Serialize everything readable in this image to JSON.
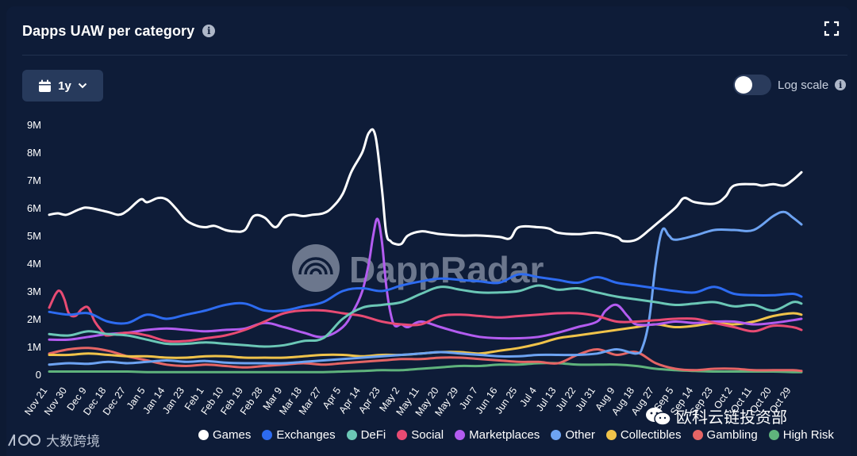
{
  "header": {
    "title": "Dapps UAW per category"
  },
  "controls": {
    "range_label": "1y",
    "log_label": "Log scale"
  },
  "watermark": {
    "brand": "DappRadar",
    "cn_text": "欧科云链投资部",
    "bottom_text": "大数跨境"
  },
  "colors": {
    "Games": "#ffffff",
    "Exchanges": "#2d6bf0",
    "DeFi": "#6bc7b6",
    "Social": "#e84b73",
    "Marketplaces": "#b35cf0",
    "Other": "#6da3f2",
    "Collectibles": "#f0c34a",
    "Gambling": "#e56565",
    "High Risk": "#5fb37c"
  },
  "chart_data": {
    "type": "line",
    "title": "Dapps UAW per category",
    "ylim": [
      0,
      9000000
    ],
    "y_ticks": [
      0,
      1000000,
      2000000,
      3000000,
      4000000,
      5000000,
      6000000,
      7000000,
      8000000,
      9000000
    ],
    "y_tick_labels": [
      "0",
      "1M",
      "2M",
      "3M",
      "4M",
      "5M",
      "6M",
      "7M",
      "8M",
      "9M"
    ],
    "categories": [
      "Nov 21",
      "Nov 30",
      "Dec 9",
      "Dec 18",
      "Dec 27",
      "Jan 5",
      "Jan 14",
      "Jan 23",
      "Feb 1",
      "Feb 10",
      "Feb 19",
      "Feb 28",
      "Mar 9",
      "Mar 18",
      "Mar 27",
      "Apr 5",
      "Apr 14",
      "Apr 23",
      "May 2",
      "May 11",
      "May 20",
      "May 29",
      "Jun 7",
      "Jun 16",
      "Jun 25",
      "Jul 4",
      "Jul 13",
      "Jul 22",
      "Jul 31",
      "Aug 9",
      "Aug 18",
      "Aug 27",
      "Sep 5",
      "Sep 14",
      "Sep 23",
      "Oct 2",
      "Oct 11",
      "Oct 20",
      "Oct 29"
    ],
    "x": [
      0,
      9,
      18,
      27,
      36,
      45,
      54,
      63,
      72,
      81,
      90,
      99,
      108,
      117,
      126,
      135,
      144,
      153,
      162,
      171,
      180,
      189,
      198,
      207,
      216,
      225,
      234,
      243,
      252,
      261,
      270,
      279,
      288,
      297,
      306,
      315,
      324,
      333,
      342
    ],
    "series": [
      {
        "name": "Games",
        "x": [
          0,
          4,
          8,
          14,
          18,
          27,
          32,
          36,
          42,
          45,
          50,
          54,
          58,
          63,
          68,
          72,
          76,
          81,
          85,
          90,
          94,
          99,
          104,
          108,
          112,
          117,
          121,
          126,
          130,
          135,
          139,
          144,
          147,
          150,
          153,
          155,
          157,
          159,
          162,
          165,
          171,
          176,
          180,
          189,
          198,
          207,
          212,
          216,
          225,
          230,
          234,
          243,
          252,
          261,
          264,
          270,
          276,
          279,
          288,
          292,
          297,
          306,
          311,
          315,
          324,
          328,
          333,
          338,
          342,
          346
        ],
        "values": [
          5750000,
          5800000,
          5750000,
          5950000,
          6000000,
          5850000,
          5750000,
          5900000,
          6300000,
          6200000,
          6350000,
          6300000,
          6000000,
          5550000,
          5350000,
          5300000,
          5350000,
          5200000,
          5150000,
          5200000,
          5700000,
          5650000,
          5300000,
          5650000,
          5750000,
          5700000,
          5750000,
          5800000,
          6000000,
          6500000,
          7300000,
          8000000,
          8700000,
          8600000,
          6700000,
          5100000,
          4800000,
          4700000,
          4700000,
          5000000,
          5150000,
          5100000,
          5050000,
          5000000,
          5000000,
          4950000,
          4900000,
          5300000,
          5300000,
          5250000,
          5100000,
          5050000,
          5100000,
          4950000,
          4800000,
          4850000,
          5200000,
          5400000,
          6000000,
          6350000,
          6200000,
          6150000,
          6400000,
          6800000,
          6850000,
          6800000,
          6850000,
          6800000,
          7000000,
          7280000
        ]
      },
      {
        "name": "Exchanges",
        "x": [
          0,
          9,
          18,
          27,
          36,
          45,
          54,
          63,
          72,
          81,
          90,
          99,
          108,
          117,
          126,
          135,
          144,
          153,
          162,
          171,
          180,
          189,
          198,
          207,
          216,
          225,
          234,
          243,
          252,
          261,
          270,
          279,
          288,
          297,
          306,
          315,
          324,
          333,
          342,
          346
        ],
        "values": [
          2250000,
          2150000,
          2200000,
          1900000,
          1850000,
          2150000,
          2000000,
          2150000,
          2300000,
          2500000,
          2550000,
          2300000,
          2300000,
          2450000,
          2600000,
          3000000,
          3100000,
          3000000,
          3200000,
          3350000,
          3450000,
          3400000,
          3350000,
          3300000,
          3600000,
          3500000,
          3400000,
          3300000,
          3500000,
          3300000,
          3200000,
          3100000,
          3000000,
          2950000,
          3150000,
          2900000,
          2850000,
          2850000,
          2900000,
          2800000
        ]
      },
      {
        "name": "DeFi",
        "x": [
          0,
          9,
          18,
          27,
          36,
          45,
          54,
          63,
          72,
          81,
          90,
          99,
          108,
          117,
          126,
          135,
          144,
          153,
          162,
          171,
          180,
          189,
          198,
          207,
          216,
          225,
          234,
          243,
          252,
          261,
          270,
          279,
          288,
          297,
          306,
          315,
          324,
          333,
          342,
          346
        ],
        "values": [
          1450000,
          1400000,
          1550000,
          1450000,
          1400000,
          1250000,
          1100000,
          1100000,
          1150000,
          1100000,
          1050000,
          1000000,
          1050000,
          1200000,
          1300000,
          2000000,
          2400000,
          2500000,
          2600000,
          2900000,
          3150000,
          3050000,
          2950000,
          2950000,
          3000000,
          3200000,
          3050000,
          3100000,
          2950000,
          2800000,
          2700000,
          2600000,
          2500000,
          2550000,
          2600000,
          2450000,
          2500000,
          2300000,
          2600000,
          2550000
        ]
      },
      {
        "name": "Social",
        "x": [
          0,
          3,
          5,
          7,
          9,
          12,
          15,
          18,
          21,
          25,
          27,
          36,
          45,
          54,
          63,
          72,
          81,
          90,
          99,
          108,
          117,
          126,
          135,
          144,
          153,
          162,
          171,
          180,
          189,
          198,
          207,
          216,
          225,
          234,
          243,
          252,
          261,
          270,
          279,
          288,
          297,
          306,
          315,
          324,
          333,
          342,
          346
        ],
        "values": [
          2400000,
          2900000,
          3000000,
          2700000,
          2200000,
          2100000,
          2350000,
          2400000,
          1900000,
          1500000,
          1400000,
          1500000,
          1400000,
          1200000,
          1200000,
          1300000,
          1400000,
          1600000,
          1900000,
          2200000,
          2300000,
          2300000,
          2200000,
          2100000,
          1900000,
          1800000,
          1800000,
          2100000,
          2150000,
          2100000,
          2050000,
          2100000,
          2150000,
          2200000,
          2200000,
          2100000,
          1900000,
          1900000,
          1950000,
          2000000,
          2000000,
          1850000,
          1700000,
          1550000,
          1750000,
          1700000,
          1600000
        ]
      },
      {
        "name": "Marketplaces",
        "x": [
          0,
          9,
          18,
          27,
          36,
          45,
          54,
          63,
          72,
          81,
          90,
          99,
          108,
          117,
          126,
          135,
          140,
          144,
          147,
          149,
          151,
          153,
          155,
          157,
          159,
          162,
          165,
          171,
          180,
          189,
          198,
          207,
          216,
          225,
          234,
          243,
          252,
          256,
          261,
          266,
          270,
          279,
          288,
          297,
          306,
          315,
          324,
          333,
          342,
          346
        ],
        "values": [
          1250000,
          1250000,
          1350000,
          1450000,
          1500000,
          1600000,
          1650000,
          1600000,
          1550000,
          1600000,
          1650000,
          1850000,
          1700000,
          1500000,
          1350000,
          1700000,
          2300000,
          3000000,
          4000000,
          5000000,
          5600000,
          4800000,
          3200000,
          2200000,
          1750000,
          1800000,
          1700000,
          1900000,
          1700000,
          1500000,
          1350000,
          1300000,
          1300000,
          1350000,
          1500000,
          1700000,
          1900000,
          2300000,
          2500000,
          2100000,
          1800000,
          1800000,
          1900000,
          1850000,
          1900000,
          1900000,
          1800000,
          1850000,
          1950000,
          2000000
        ]
      },
      {
        "name": "Other",
        "x": [
          0,
          9,
          18,
          27,
          36,
          45,
          54,
          63,
          72,
          81,
          90,
          99,
          108,
          117,
          126,
          135,
          144,
          153,
          162,
          171,
          180,
          189,
          198,
          207,
          216,
          225,
          234,
          243,
          252,
          261,
          270,
          273,
          276,
          279,
          282,
          285,
          288,
          297,
          306,
          315,
          324,
          333,
          338,
          342,
          346
        ],
        "values": [
          350000,
          400000,
          380000,
          450000,
          400000,
          450000,
          500000,
          450000,
          480000,
          420000,
          400000,
          400000,
          400000,
          450000,
          500000,
          550000,
          600000,
          650000,
          700000,
          750000,
          800000,
          750000,
          700000,
          650000,
          650000,
          700000,
          700000,
          700000,
          750000,
          900000,
          750000,
          1000000,
          2000000,
          4000000,
          5200000,
          5000000,
          4850000,
          5000000,
          5200000,
          5200000,
          5200000,
          5700000,
          5850000,
          5650000,
          5400000
        ]
      },
      {
        "name": "Collectibles",
        "x": [
          0,
          9,
          18,
          27,
          36,
          45,
          54,
          63,
          72,
          81,
          90,
          99,
          108,
          117,
          126,
          135,
          144,
          153,
          162,
          171,
          180,
          189,
          198,
          207,
          216,
          225,
          234,
          243,
          252,
          261,
          270,
          279,
          288,
          297,
          306,
          315,
          324,
          333,
          342,
          346
        ],
        "values": [
          700000,
          700000,
          750000,
          700000,
          650000,
          650000,
          600000,
          600000,
          650000,
          650000,
          600000,
          600000,
          600000,
          650000,
          700000,
          700000,
          650000,
          700000,
          700000,
          750000,
          800000,
          800000,
          750000,
          850000,
          950000,
          1100000,
          1300000,
          1400000,
          1500000,
          1600000,
          1700000,
          1800000,
          1700000,
          1750000,
          1850000,
          1800000,
          1900000,
          2100000,
          2200000,
          2150000
        ]
      },
      {
        "name": "Gambling",
        "x": [
          0,
          9,
          18,
          27,
          36,
          45,
          54,
          63,
          72,
          81,
          90,
          99,
          108,
          117,
          126,
          135,
          144,
          153,
          162,
          171,
          180,
          189,
          198,
          207,
          216,
          225,
          234,
          243,
          252,
          261,
          270,
          279,
          288,
          297,
          306,
          315,
          324,
          333,
          342,
          346
        ],
        "values": [
          750000,
          900000,
          950000,
          850000,
          650000,
          500000,
          350000,
          300000,
          350000,
          300000,
          250000,
          300000,
          350000,
          400000,
          350000,
          400000,
          450000,
          500000,
          550000,
          550000,
          600000,
          600000,
          550000,
          500000,
          450000,
          450000,
          400000,
          700000,
          900000,
          700000,
          800000,
          400000,
          200000,
          150000,
          200000,
          200000,
          150000,
          150000,
          150000,
          120000
        ]
      },
      {
        "name": "High Risk",
        "x": [
          0,
          9,
          18,
          27,
          36,
          45,
          54,
          63,
          72,
          81,
          90,
          99,
          108,
          117,
          126,
          135,
          144,
          153,
          162,
          171,
          180,
          189,
          198,
          207,
          216,
          225,
          234,
          243,
          252,
          261,
          270,
          279,
          288,
          297,
          306,
          315,
          324,
          333,
          342,
          346
        ],
        "values": [
          100000,
          100000,
          100000,
          100000,
          100000,
          80000,
          80000,
          80000,
          80000,
          80000,
          80000,
          80000,
          80000,
          80000,
          80000,
          100000,
          120000,
          150000,
          150000,
          200000,
          250000,
          300000,
          300000,
          350000,
          350000,
          400000,
          400000,
          350000,
          350000,
          350000,
          300000,
          200000,
          150000,
          120000,
          100000,
          100000,
          100000,
          100000,
          80000,
          80000
        ]
      }
    ]
  }
}
